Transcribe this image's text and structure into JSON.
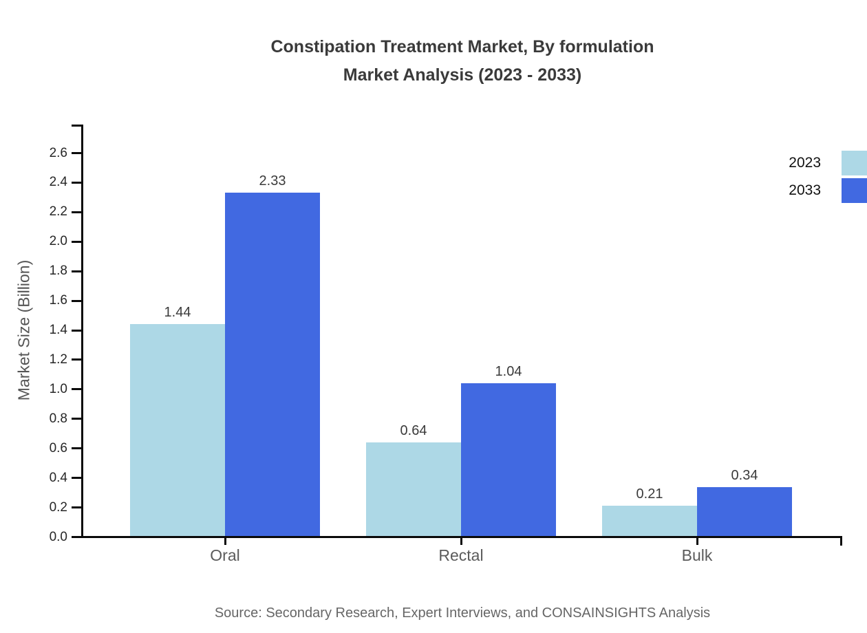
{
  "title": {
    "line1": "Constipation Treatment Market, By formulation",
    "line2": "Market Analysis (2023 - 2033)"
  },
  "source": "Source: Secondary Research, Expert Interviews, and CONSAINSIGHTS Analysis",
  "chart_data": {
    "type": "bar",
    "categories": [
      "Oral",
      "Rectal",
      "Bulk"
    ],
    "series": [
      {
        "name": "2023",
        "color": "#ADD8E6",
        "values": [
          1.44,
          0.64,
          0.21
        ]
      },
      {
        "name": "2033",
        "color": "#4169E1",
        "values": [
          2.33,
          1.04,
          0.34
        ]
      }
    ],
    "title": "Constipation Treatment Market, By formulation Market Analysis (2023 - 2033)",
    "xlabel": "",
    "ylabel": "Market Size (Billion)",
    "yticks": [
      "0.0",
      "0.2",
      "0.4",
      "0.6",
      "0.8",
      "1.0",
      "1.2",
      "1.4",
      "1.6",
      "1.8",
      "2.0",
      "2.2",
      "2.4",
      "2.6"
    ],
    "ylim": [
      0,
      2.8
    ],
    "grid": false,
    "legend_position": "top-right",
    "value_label_format": "2-decimals"
  }
}
